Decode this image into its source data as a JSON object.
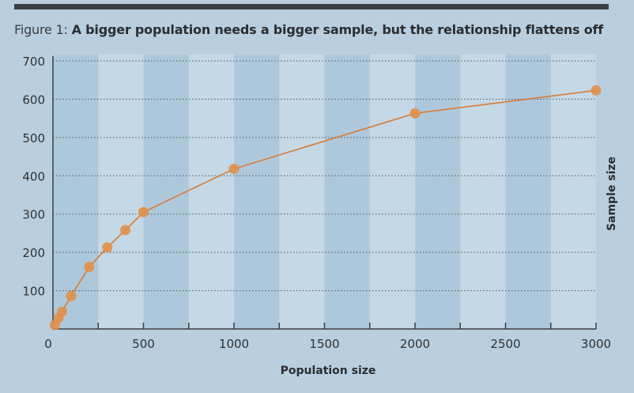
{
  "figure_label": "Figure 1:",
  "chart_data": {
    "type": "line",
    "title": "A bigger population needs a bigger sample, but the relationship flattens off",
    "xlabel": "Population size",
    "ylabel": "Sample size",
    "xlim": [
      0,
      3000
    ],
    "ylim": [
      0,
      700
    ],
    "xticks": [
      0,
      500,
      1000,
      1500,
      2000,
      2500,
      3000
    ],
    "yticks": [
      100,
      200,
      300,
      400,
      500,
      600,
      700
    ],
    "grid": "horizontal dotted",
    "x": [
      10,
      30,
      50,
      100,
      200,
      300,
      400,
      500,
      1000,
      2000,
      3000
    ],
    "y": [
      10,
      28,
      45,
      86,
      162,
      213,
      258,
      305,
      418,
      563,
      623
    ],
    "colors": {
      "line": "#d97b35",
      "marker": "#e0904a",
      "background": "#b9cfe0",
      "band_light": "#c8d9e7",
      "band_dark": "#abc5d9",
      "axis": "#3b3f44"
    }
  }
}
